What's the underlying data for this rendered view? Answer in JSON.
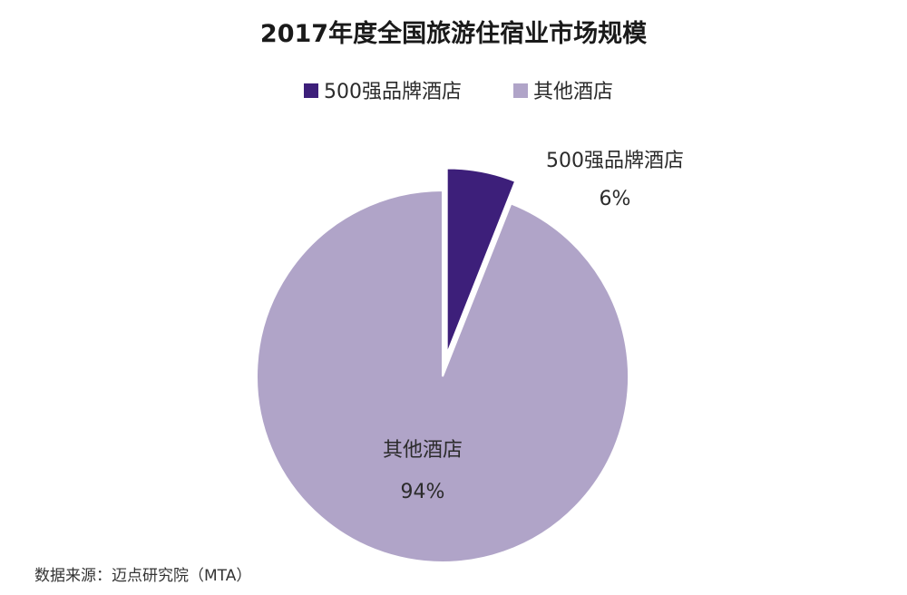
{
  "chart_data": {
    "type": "pie",
    "title": "2017年度全国旅游住宿业市场规模",
    "categories": [
      "500强品牌酒店",
      "其他酒店"
    ],
    "values": [
      6,
      94
    ],
    "value_labels": [
      "6%",
      "94%"
    ],
    "colors": [
      "#3d1f7a",
      "#b0a4c8"
    ],
    "exploded": [
      true,
      false
    ],
    "legend_position": "top-center",
    "source": "数据来源：迈点研究院（MTA）"
  }
}
